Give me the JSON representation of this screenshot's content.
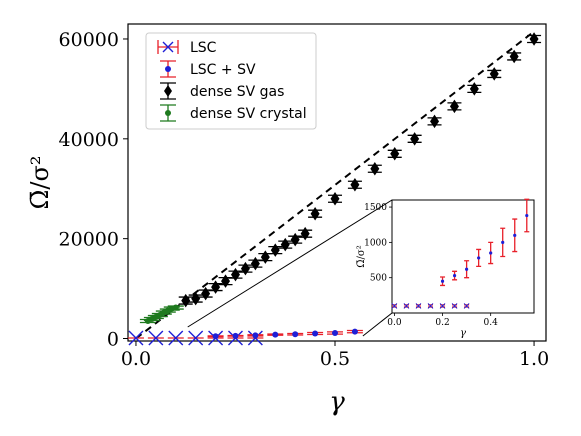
{
  "chart_data": {
    "type": "scatter",
    "xlabel": "γ",
    "ylabel": "Ω̄/σ²",
    "xlim": [
      -0.02,
      1.03
    ],
    "ylim": [
      -500,
      63000
    ],
    "xticks": [
      0.0,
      0.5,
      1.0
    ],
    "xtick_labels": [
      "0.0",
      "0.5",
      "1.0"
    ],
    "yticks": [
      0,
      20000,
      40000,
      60000
    ],
    "ytick_labels": [
      "0",
      "20000",
      "40000",
      "60000"
    ],
    "grid": false,
    "legend_position": "top-left",
    "series": [
      {
        "name": "LSC",
        "color": "#1f1fd6",
        "errcolor": "#e8202a",
        "marker": "x",
        "x": [
          0.0,
          0.05,
          0.1,
          0.15,
          0.2,
          0.25,
          0.3
        ],
        "y": [
          100,
          100,
          100,
          100,
          100,
          100,
          100
        ],
        "err": [
          15,
          15,
          15,
          15,
          15,
          15,
          15
        ]
      },
      {
        "name": "LSC + SV",
        "color": "#1f1fd6",
        "errcolor": "#e8202a",
        "marker": "dot",
        "x": [
          0.2,
          0.25,
          0.3,
          0.35,
          0.4,
          0.45,
          0.5,
          0.55
        ],
        "y": [
          450,
          530,
          620,
          780,
          850,
          1000,
          1100,
          1380
        ],
        "err": [
          60,
          60,
          120,
          120,
          150,
          200,
          230,
          230
        ]
      },
      {
        "name": "dense SV gas",
        "color": "#000000",
        "errcolor": "#000000",
        "marker": "diamond",
        "x": [
          0.125,
          0.15,
          0.175,
          0.2,
          0.225,
          0.25,
          0.275,
          0.3,
          0.325,
          0.35,
          0.375,
          0.4,
          0.425,
          0.45,
          0.5,
          0.55,
          0.6,
          0.65,
          0.7,
          0.75,
          0.8,
          0.85,
          0.9,
          0.95,
          1.0
        ],
        "y": [
          7600,
          8000,
          9000,
          10300,
          11500,
          12800,
          14000,
          15000,
          16300,
          17700,
          18800,
          19800,
          21000,
          25000,
          28000,
          30800,
          34000,
          37000,
          40000,
          43500,
          46500,
          50000,
          53000,
          56500,
          60000
        ],
        "err": [
          700,
          700,
          700,
          700,
          700,
          700,
          700,
          700,
          700,
          700,
          700,
          700,
          700,
          700,
          700,
          700,
          700,
          700,
          700,
          700,
          700,
          700,
          700,
          700,
          700
        ]
      },
      {
        "name": "dense SV crystal",
        "color": "#1e7a1e",
        "errcolor": "#1e7a1e",
        "marker": "dot",
        "x": [
          0.03,
          0.04,
          0.05,
          0.06,
          0.07,
          0.08,
          0.09,
          0.1
        ],
        "y": [
          3500,
          3900,
          4300,
          4700,
          5200,
          5600,
          6000,
          6200
        ],
        "err": [
          300,
          300,
          300,
          300,
          300,
          300,
          300,
          300
        ]
      }
    ],
    "reference_line": {
      "style": "dashed",
      "x": [
        0.0,
        1.0
      ],
      "y": [
        0,
        61500
      ]
    },
    "inset": {
      "xlabel": "γ",
      "ylabel": "Ω̄/σ²",
      "xlim": [
        -0.01,
        0.58
      ],
      "ylim": [
        0,
        1600
      ],
      "xticks": [
        0.0,
        0.2,
        0.4
      ],
      "xtick_labels": [
        "0.0",
        "0.2",
        "0.4"
      ],
      "yticks": [
        500,
        1000,
        1500
      ],
      "ytick_labels": [
        "500",
        "1000",
        "1500"
      ]
    }
  }
}
